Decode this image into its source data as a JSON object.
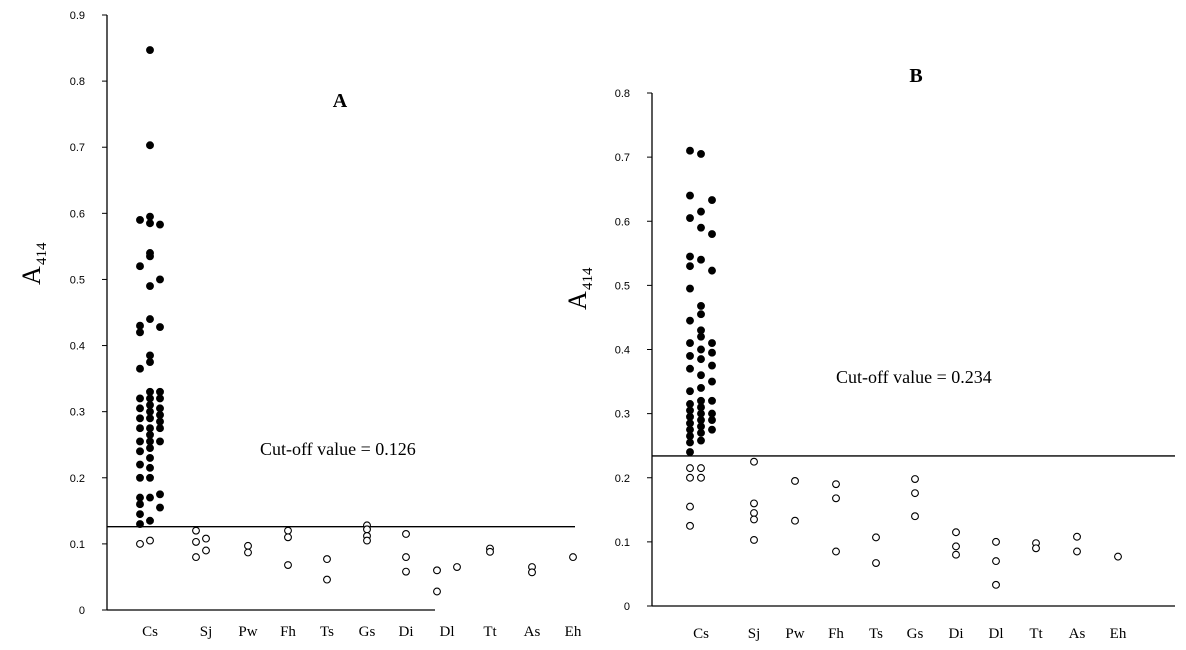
{
  "chart_data": [
    {
      "type": "scatter",
      "panel_label": "A",
      "ylabel": "A",
      "ylabel_sub": "414",
      "ylim": [
        0,
        0.9
      ],
      "yticks": [
        "0",
        "0.1",
        "0.2",
        "0.3",
        "0.4",
        "0.5",
        "0.6",
        "0.7",
        "0.8",
        "0.9"
      ],
      "categories": [
        "Cs",
        "Sj",
        "Pw",
        "Fh",
        "Ts",
        "Gs",
        "Di",
        "Dl",
        "Tt",
        "As",
        "Eh"
      ],
      "cutoff": 0.126,
      "cutoff_label": "Cut-off value = 0.126",
      "series": [
        {
          "category": "Cs",
          "filled": true,
          "points": [
            [
              -1,
              0.59
            ],
            [
              -1,
              0.52
            ],
            [
              -1,
              0.43
            ],
            [
              -1,
              0.42
            ],
            [
              -1,
              0.365
            ],
            [
              -1,
              0.32
            ],
            [
              -1,
              0.305
            ],
            [
              -1,
              0.29
            ],
            [
              -1,
              0.275
            ],
            [
              -1,
              0.255
            ],
            [
              -1,
              0.24
            ],
            [
              -1,
              0.22
            ],
            [
              -1,
              0.2
            ],
            [
              -1,
              0.17
            ],
            [
              -1,
              0.16
            ],
            [
              -1,
              0.145
            ],
            [
              -1,
              0.13
            ],
            [
              0,
              0.847
            ],
            [
              0,
              0.703
            ],
            [
              0,
              0.595
            ],
            [
              0,
              0.585
            ],
            [
              0,
              0.54
            ],
            [
              0,
              0.535
            ],
            [
              0,
              0.49
            ],
            [
              0,
              0.44
            ],
            [
              0,
              0.385
            ],
            [
              0,
              0.375
            ],
            [
              0,
              0.33
            ],
            [
              0,
              0.32
            ],
            [
              0,
              0.31
            ],
            [
              0,
              0.3
            ],
            [
              0,
              0.29
            ],
            [
              0,
              0.275
            ],
            [
              0,
              0.265
            ],
            [
              0,
              0.255
            ],
            [
              0,
              0.245
            ],
            [
              0,
              0.23
            ],
            [
              0,
              0.215
            ],
            [
              0,
              0.2
            ],
            [
              0,
              0.17
            ],
            [
              0,
              0.135
            ],
            [
              1,
              0.583
            ],
            [
              1,
              0.5
            ],
            [
              1,
              0.428
            ],
            [
              1,
              0.33
            ],
            [
              1,
              0.32
            ],
            [
              1,
              0.305
            ],
            [
              1,
              0.295
            ],
            [
              1,
              0.285
            ],
            [
              1,
              0.275
            ],
            [
              1,
              0.255
            ],
            [
              1,
              0.175
            ],
            [
              1,
              0.155
            ]
          ]
        },
        {
          "category": "Cs",
          "filled": false,
          "points": [
            [
              -1,
              0.1
            ],
            [
              0,
              0.105
            ]
          ]
        },
        {
          "category": "Sj",
          "filled": false,
          "points": [
            [
              -1,
              0.12
            ],
            [
              -1,
              0.103
            ],
            [
              -1,
              0.08
            ],
            [
              0,
              0.108
            ],
            [
              0,
              0.09
            ]
          ]
        },
        {
          "category": "Pw",
          "filled": false,
          "points": [
            [
              0,
              0.097
            ],
            [
              0,
              0.087
            ]
          ]
        },
        {
          "category": "Fh",
          "filled": false,
          "points": [
            [
              0,
              0.12
            ],
            [
              0,
              0.11
            ],
            [
              0,
              0.068
            ]
          ]
        },
        {
          "category": "Ts",
          "filled": false,
          "points": [
            [
              0,
              0.077
            ],
            [
              0,
              0.046
            ]
          ]
        },
        {
          "category": "Gs",
          "filled": false,
          "points": [
            [
              0,
              0.128
            ],
            [
              0,
              0.122
            ],
            [
              0,
              0.112
            ],
            [
              0,
              0.105
            ]
          ]
        },
        {
          "category": "Di",
          "filled": false,
          "points": [
            [
              0,
              0.115
            ],
            [
              0,
              0.08
            ],
            [
              0,
              0.058
            ]
          ]
        },
        {
          "category": "Dl",
          "filled": false,
          "points": [
            [
              -1,
              0.06
            ],
            [
              -1,
              0.028
            ],
            [
              1,
              0.065
            ]
          ]
        },
        {
          "category": "Tt",
          "filled": false,
          "points": [
            [
              0,
              0.093
            ],
            [
              0,
              0.088
            ]
          ]
        },
        {
          "category": "As",
          "filled": false,
          "points": [
            [
              0,
              0.065
            ],
            [
              0,
              0.057
            ]
          ]
        },
        {
          "category": "Eh",
          "filled": false,
          "points": [
            [
              0,
              0.08
            ]
          ]
        }
      ]
    },
    {
      "type": "scatter",
      "panel_label": "B",
      "ylabel": "A",
      "ylabel_sub": "414",
      "ylim": [
        0,
        0.8
      ],
      "yticks": [
        "0",
        "0.1",
        "0.2",
        "0.3",
        "0.4",
        "0.5",
        "0.6",
        "0.7",
        "0.8"
      ],
      "categories": [
        "Cs",
        "Sj",
        "Pw",
        "Fh",
        "Ts",
        "Gs",
        "Di",
        "Dl",
        "Tt",
        "As",
        "Eh"
      ],
      "cutoff": 0.234,
      "cutoff_label": "Cut-off value = 0.234",
      "series": [
        {
          "category": "Cs",
          "filled": true,
          "points": [
            [
              -1,
              0.71
            ],
            [
              -1,
              0.64
            ],
            [
              -1,
              0.605
            ],
            [
              -1,
              0.545
            ],
            [
              -1,
              0.53
            ],
            [
              -1,
              0.495
            ],
            [
              -1,
              0.445
            ],
            [
              -1,
              0.41
            ],
            [
              -1,
              0.39
            ],
            [
              -1,
              0.37
            ],
            [
              -1,
              0.335
            ],
            [
              -1,
              0.315
            ],
            [
              -1,
              0.305
            ],
            [
              -1,
              0.295
            ],
            [
              -1,
              0.285
            ],
            [
              -1,
              0.275
            ],
            [
              -1,
              0.265
            ],
            [
              -1,
              0.255
            ],
            [
              -1,
              0.24
            ],
            [
              0,
              0.705
            ],
            [
              0,
              0.615
            ],
            [
              0,
              0.59
            ],
            [
              0,
              0.54
            ],
            [
              0,
              0.468
            ],
            [
              0,
              0.455
            ],
            [
              0,
              0.43
            ],
            [
              0,
              0.42
            ],
            [
              0,
              0.4
            ],
            [
              0,
              0.385
            ],
            [
              0,
              0.36
            ],
            [
              0,
              0.34
            ],
            [
              0,
              0.32
            ],
            [
              0,
              0.31
            ],
            [
              0,
              0.3
            ],
            [
              0,
              0.29
            ],
            [
              0,
              0.28
            ],
            [
              0,
              0.27
            ],
            [
              0,
              0.258
            ],
            [
              1,
              0.633
            ],
            [
              1,
              0.58
            ],
            [
              1,
              0.523
            ],
            [
              1,
              0.41
            ],
            [
              1,
              0.395
            ],
            [
              1,
              0.375
            ],
            [
              1,
              0.35
            ],
            [
              1,
              0.32
            ],
            [
              1,
              0.3
            ],
            [
              1,
              0.29
            ],
            [
              1,
              0.275
            ]
          ]
        },
        {
          "category": "Cs",
          "filled": false,
          "points": [
            [
              -1,
              0.215
            ],
            [
              -1,
              0.2
            ],
            [
              -1,
              0.155
            ],
            [
              -1,
              0.125
            ],
            [
              0,
              0.215
            ],
            [
              0,
              0.2
            ]
          ]
        },
        {
          "category": "Sj",
          "filled": false,
          "points": [
            [
              0,
              0.225
            ],
            [
              0,
              0.16
            ],
            [
              0,
              0.145
            ],
            [
              0,
              0.135
            ],
            [
              0,
              0.103
            ]
          ]
        },
        {
          "category": "Pw",
          "filled": false,
          "points": [
            [
              0,
              0.195
            ],
            [
              0,
              0.133
            ]
          ]
        },
        {
          "category": "Fh",
          "filled": false,
          "points": [
            [
              0,
              0.19
            ],
            [
              0,
              0.168
            ],
            [
              0,
              0.085
            ]
          ]
        },
        {
          "category": "Ts",
          "filled": false,
          "points": [
            [
              0,
              0.107
            ],
            [
              0,
              0.067
            ]
          ]
        },
        {
          "category": "Gs",
          "filled": false,
          "points": [
            [
              0,
              0.198
            ],
            [
              0,
              0.176
            ],
            [
              0,
              0.14
            ]
          ]
        },
        {
          "category": "Di",
          "filled": false,
          "points": [
            [
              0,
              0.115
            ],
            [
              0,
              0.093
            ],
            [
              0,
              0.08
            ]
          ]
        },
        {
          "category": "Dl",
          "filled": false,
          "points": [
            [
              0,
              0.1
            ],
            [
              0,
              0.07
            ],
            [
              0,
              0.033
            ]
          ]
        },
        {
          "category": "Tt",
          "filled": false,
          "points": [
            [
              0,
              0.098
            ],
            [
              0,
              0.09
            ]
          ]
        },
        {
          "category": "As",
          "filled": false,
          "points": [
            [
              0,
              0.108
            ],
            [
              0,
              0.085
            ]
          ]
        },
        {
          "category": "Eh",
          "filled": false,
          "points": [
            [
              0,
              0.077
            ]
          ]
        }
      ]
    }
  ]
}
